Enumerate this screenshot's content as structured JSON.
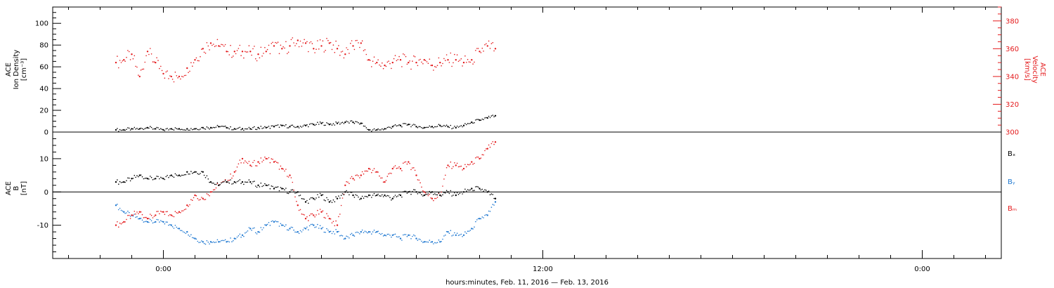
{
  "colors": {
    "black": "#000000",
    "red": "#e41a1c",
    "blue": "#1f78d1"
  },
  "chart_data": [
    {
      "type": "scatter",
      "panel": "top",
      "ylabel_left": [
        "ACE",
        "Ion Density",
        "[cm⁻³]"
      ],
      "ylabel_right": [
        "ACE",
        "Velocity",
        "[km/s]"
      ],
      "y_ticks_left": [
        "0",
        "20",
        "40",
        "60",
        "80",
        "100"
      ],
      "y_ticks_right": [
        "300",
        "320",
        "340",
        "360",
        "380"
      ],
      "ylim_left": [
        0,
        115
      ],
      "ylim_right": [
        300,
        390
      ],
      "grid": false,
      "series": [
        {
          "axis": "left",
          "color": "black",
          "x": [
            -3.0,
            -2.5,
            -2.0,
            -1.5,
            -1.0,
            -0.5,
            0.0,
            0.5,
            1.0,
            1.5,
            2.0,
            2.5,
            3.0,
            3.5,
            4.0,
            4.5,
            5.0,
            5.5,
            6.0,
            6.5,
            7.0,
            7.5,
            8.0,
            8.5,
            9.0,
            9.5,
            10.0,
            10.5,
            11.0,
            11.5,
            12.0,
            12.5,
            13.0,
            13.5,
            14.0,
            14.5,
            15.0,
            15.5,
            16.0,
            16.5,
            17.0,
            17.5,
            18.0,
            18.5,
            19.0,
            19.5,
            20.0,
            20.5,
            21.0
          ],
          "values": [
            2,
            2,
            3,
            3,
            4,
            3,
            2,
            3,
            3,
            3,
            3,
            4,
            4,
            5,
            4,
            3,
            3,
            3,
            4,
            4,
            5,
            6,
            5,
            5,
            6,
            7,
            8,
            7,
            8,
            9,
            9,
            8,
            2,
            2,
            3,
            5,
            6,
            7,
            5,
            4,
            5,
            6,
            5,
            4,
            6,
            9,
            11,
            13,
            15
          ]
        },
        {
          "axis": "right",
          "color": "red",
          "x": [
            -3.0,
            -2.5,
            -2.0,
            -1.5,
            -1.0,
            -0.5,
            0.0,
            0.5,
            1.0,
            1.5,
            2.0,
            2.5,
            3.0,
            3.5,
            4.0,
            4.5,
            5.0,
            5.5,
            6.0,
            6.5,
            7.0,
            7.5,
            8.0,
            8.5,
            9.0,
            9.5,
            10.0,
            10.5,
            11.0,
            11.5,
            12.0,
            12.5,
            13.0,
            13.5,
            14.0,
            14.5,
            15.0,
            15.5,
            16.0,
            16.5,
            17.0,
            17.5,
            18.0,
            18.5,
            19.0,
            19.5,
            20.0,
            20.5,
            21.0
          ],
          "values": [
            350,
            352,
            356,
            340,
            358,
            350,
            342,
            340,
            340,
            346,
            352,
            360,
            364,
            362,
            358,
            358,
            358,
            358,
            356,
            358,
            362,
            360,
            362,
            366,
            364,
            360,
            362,
            364,
            360,
            356,
            362,
            364,
            352,
            350,
            348,
            350,
            352,
            350,
            350,
            352,
            348,
            350,
            352,
            352,
            350,
            352,
            358,
            362,
            360
          ]
        }
      ]
    },
    {
      "type": "scatter",
      "panel": "bottom",
      "ylabel_left": [
        "ACE",
        "B",
        "[nT]"
      ],
      "y_ticks_left": [
        "-10",
        "0",
        "10"
      ],
      "ylim": [
        -20,
        18
      ],
      "zero_line": true,
      "legend_position": "right",
      "x_ticks": [
        "0:00",
        "12:00",
        "0:00"
      ],
      "x_tick_values": [
        0,
        24,
        48
      ],
      "xlabel": "hours:minutes, Feb. 11, 2016 — Feb. 13, 2016",
      "xlim": [
        -7,
        53
      ],
      "series": [
        {
          "name": "Bₓ",
          "color": "black",
          "x": [
            -3.0,
            -2.5,
            -2.0,
            -1.5,
            -1.0,
            -0.5,
            0.0,
            0.5,
            1.0,
            1.5,
            2.0,
            2.5,
            3.0,
            3.5,
            4.0,
            4.5,
            5.0,
            5.5,
            6.0,
            6.5,
            7.0,
            7.5,
            8.0,
            8.5,
            9.0,
            9.5,
            10.0,
            10.5,
            11.0,
            11.5,
            12.0,
            12.5,
            13.0,
            13.5,
            14.0,
            14.5,
            15.0,
            15.5,
            16.0,
            16.5,
            17.0,
            17.5,
            18.0,
            18.5,
            19.0,
            19.5,
            20.0,
            20.5,
            21.0
          ],
          "values": [
            3,
            3,
            4,
            5,
            4,
            4,
            4,
            5,
            5,
            6,
            6,
            6,
            3,
            2,
            3,
            3,
            3,
            3,
            2,
            2,
            1,
            1,
            0,
            0,
            -3,
            -2,
            -1,
            -3,
            -2,
            0,
            -1,
            -2,
            -1,
            -1,
            -1,
            -2,
            -1,
            0,
            0,
            -1,
            0,
            -1,
            0,
            -1,
            0,
            1,
            1,
            0,
            -2
          ]
        },
        {
          "name": "Bᵧ",
          "color": "blue",
          "x": [
            -3.0,
            -2.5,
            -2.0,
            -1.5,
            -1.0,
            -0.5,
            0.0,
            0.5,
            1.0,
            1.5,
            2.0,
            2.5,
            3.0,
            3.5,
            4.0,
            4.5,
            5.0,
            5.5,
            6.0,
            6.5,
            7.0,
            7.5,
            8.0,
            8.5,
            9.0,
            9.5,
            10.0,
            10.5,
            11.0,
            11.5,
            12.0,
            12.5,
            13.0,
            13.5,
            14.0,
            14.5,
            15.0,
            15.5,
            16.0,
            16.5,
            17.0,
            17.5,
            18.0,
            18.5,
            19.0,
            19.5,
            20.0,
            20.5,
            21.0
          ],
          "values": [
            -4,
            -6,
            -7,
            -8,
            -9,
            -9,
            -9,
            -10,
            -11,
            -12,
            -14,
            -15,
            -15,
            -15,
            -15,
            -14,
            -13,
            -11,
            -12,
            -10,
            -9,
            -10,
            -11,
            -12,
            -11,
            -10,
            -11,
            -12,
            -12,
            -14,
            -13,
            -12,
            -12,
            -12,
            -13,
            -13,
            -14,
            -13,
            -14,
            -15,
            -15,
            -15,
            -12,
            -13,
            -13,
            -11,
            -8,
            -7,
            -3
          ]
        },
        {
          "name": "Bₘ",
          "color": "red",
          "x": [
            -3.0,
            -2.5,
            -2.0,
            -1.5,
            -1.0,
            -0.5,
            0.0,
            0.5,
            1.0,
            1.5,
            2.0,
            2.5,
            3.0,
            3.5,
            4.0,
            4.5,
            5.0,
            5.5,
            6.0,
            6.5,
            7.0,
            7.5,
            8.0,
            8.5,
            9.0,
            9.5,
            10.0,
            10.5,
            11.0,
            11.5,
            12.0,
            12.5,
            13.0,
            13.5,
            14.0,
            14.5,
            15.0,
            15.5,
            16.0,
            16.5,
            17.0,
            17.5,
            18.0,
            18.5,
            19.0,
            19.5,
            20.0,
            20.5,
            21.0
          ],
          "values": [
            -10,
            -9,
            -7,
            -6,
            -8,
            -7,
            -6,
            -7,
            -6,
            -4,
            -1,
            -2,
            0,
            2,
            3,
            6,
            10,
            8,
            9,
            10,
            9,
            7,
            5,
            -4,
            -8,
            -7,
            -6,
            -8,
            -10,
            2,
            4,
            5,
            7,
            6,
            3,
            7,
            7,
            9,
            5,
            0,
            -2,
            -1,
            8,
            8,
            7,
            9,
            10,
            13,
            15
          ]
        }
      ]
    }
  ]
}
